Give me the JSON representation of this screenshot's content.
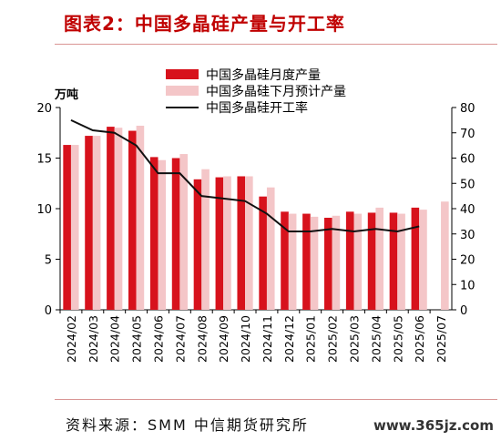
{
  "title": "图表2：中国多晶硅产量与开工率",
  "source": "资料来源：SMM 中信期货研究所",
  "watermark": "www.365jz.com",
  "chart_data": {
    "type": "bar",
    "categories": [
      "2024/02",
      "2024/03",
      "2024/04",
      "2024/05",
      "2024/06",
      "2024/07",
      "2024/08",
      "2024/09",
      "2024/10",
      "2024/11",
      "2024/12",
      "2025/01",
      "2025/02",
      "2025/03",
      "2025/04",
      "2025/05",
      "2025/06",
      "2025/07"
    ],
    "left_axis": {
      "unit": "万吨",
      "range": [
        0,
        20
      ],
      "ticks": [
        0,
        5,
        10,
        15,
        20
      ]
    },
    "right_axis": {
      "range": [
        0,
        80
      ],
      "ticks": [
        0,
        10,
        20,
        30,
        40,
        50,
        60,
        70,
        80
      ]
    },
    "series": [
      {
        "name": "中国多晶硅月度产量",
        "type": "bar",
        "axis": "left",
        "color": "#d7121c",
        "values": [
          16.3,
          17.2,
          18.1,
          17.7,
          15.1,
          15.0,
          12.9,
          13.1,
          13.2,
          11.2,
          9.7,
          9.5,
          9.1,
          9.7,
          9.6,
          9.6,
          10.1,
          null
        ]
      },
      {
        "name": "中国多晶硅下月预计产量",
        "type": "bar",
        "axis": "left",
        "color": "#f4c6c8",
        "values": [
          16.3,
          17.2,
          18.0,
          18.2,
          14.8,
          15.4,
          13.9,
          13.2,
          13.2,
          12.1,
          9.5,
          9.2,
          9.3,
          9.5,
          10.1,
          9.5,
          9.9,
          10.7
        ]
      },
      {
        "name": "中国多晶硅开工率",
        "type": "line",
        "axis": "right",
        "color": "#111111",
        "values": [
          75,
          71,
          70,
          65,
          54,
          54,
          45,
          44,
          43,
          38,
          31,
          31,
          32,
          31,
          32,
          31,
          33,
          null
        ]
      }
    ],
    "legend": "top-center",
    "grid": false
  }
}
